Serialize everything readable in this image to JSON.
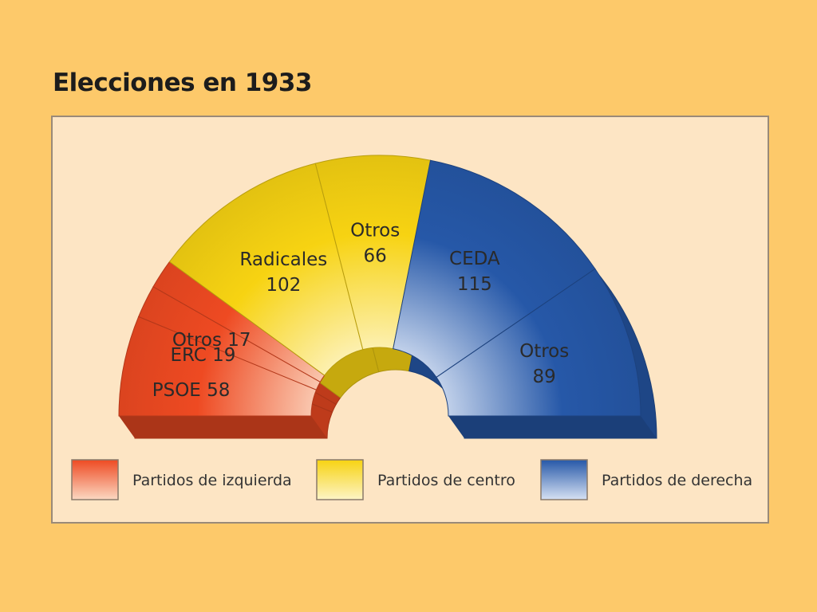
{
  "chart_data": {
    "type": "pie",
    "subtype": "half-donut (parliament hemicycle)",
    "title": "Elecciones en 1933",
    "order": "left-to-right",
    "slices": [
      {
        "label": "PSOE",
        "value": 58,
        "group": "izquierda",
        "display": "PSOE 58"
      },
      {
        "label": "ERC",
        "value": 19,
        "group": "izquierda",
        "display": "ERC 19"
      },
      {
        "label": "Otros",
        "value": 17,
        "group": "izquierda",
        "display": "Otros 17"
      },
      {
        "label": "Radicales",
        "value": 102,
        "group": "centro",
        "display": "Radicales\n102"
      },
      {
        "label": "Otros",
        "value": 66,
        "group": "centro",
        "display": "Otros\n66"
      },
      {
        "label": "CEDA",
        "value": 115,
        "group": "derecha",
        "display": "CEDA\n115"
      },
      {
        "label": "Otros",
        "value": 89,
        "group": "derecha",
        "display": "Otros\n89"
      }
    ],
    "groups": {
      "izquierda": {
        "legend": "Partidos de izquierda",
        "color": "#ee4a22",
        "light": "#fbd8c2"
      },
      "centro": {
        "legend": "Partidos de centro",
        "color": "#f7d312",
        "light": "#fdf4c6"
      },
      "derecha": {
        "legend": "Partidos de derecha",
        "color": "#2658a8",
        "light": "#d6e1f3"
      }
    },
    "legend_order": [
      "izquierda",
      "centro",
      "derecha"
    ],
    "legend_position": "bottom"
  }
}
